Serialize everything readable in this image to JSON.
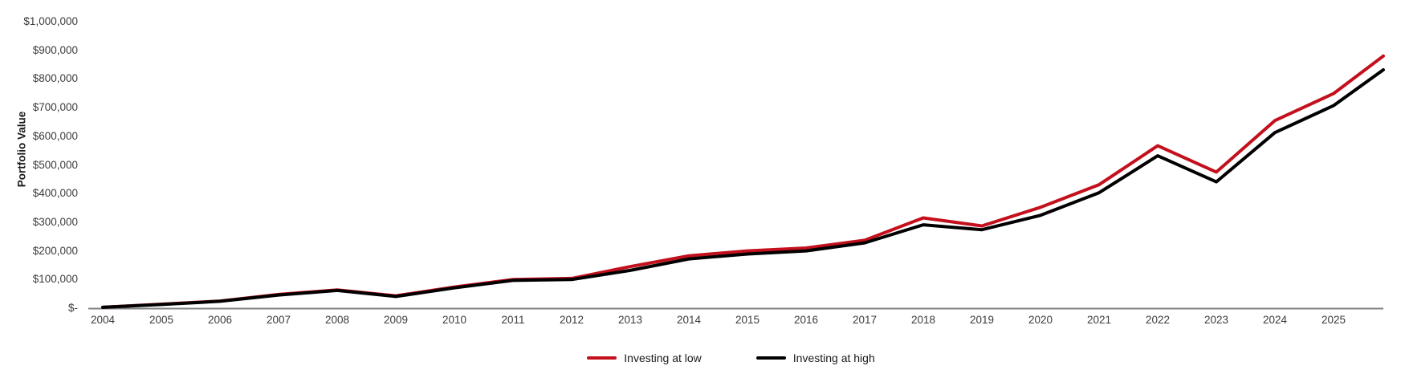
{
  "chart_data": {
    "type": "line",
    "title": "",
    "xlabel": "",
    "ylabel": "Portfolio Value",
    "ylim": [
      0,
      1000000
    ],
    "xlim": [
      2004,
      2025.85
    ],
    "grid": false,
    "legend_position": "bottom-center",
    "axis_line_color": "#808080",
    "tick_label_color": "#3b3b3b",
    "y_ticks": [
      {
        "value": 0,
        "label": "$-"
      },
      {
        "value": 100000,
        "label": "$100,000"
      },
      {
        "value": 200000,
        "label": "$200,000"
      },
      {
        "value": 300000,
        "label": "$300,000"
      },
      {
        "value": 400000,
        "label": "$400,000"
      },
      {
        "value": 500000,
        "label": "$500,000"
      },
      {
        "value": 600000,
        "label": "$600,000"
      },
      {
        "value": 700000,
        "label": "$700,000"
      },
      {
        "value": 800000,
        "label": "$800,000"
      },
      {
        "value": 900000,
        "label": "$900,000"
      },
      {
        "value": 1000000,
        "label": "$1,000,000"
      }
    ],
    "x_tick_labels": [
      "2004",
      "2005",
      "2006",
      "2007",
      "2008",
      "2009",
      "2010",
      "2011",
      "2012",
      "2013",
      "2014",
      "2015",
      "2016",
      "2017",
      "2018",
      "2019",
      "2020",
      "2021",
      "2022",
      "2023",
      "2024",
      "2025"
    ],
    "x": [
      2004,
      2005,
      2006,
      2007,
      2008,
      2009,
      2010,
      2011,
      2012,
      2013,
      2014,
      2015,
      2016,
      2017,
      2018,
      2019,
      2020,
      2021,
      2022,
      2023,
      2024,
      2025,
      2025.85
    ],
    "series": [
      {
        "name": "Investing at low",
        "color": "#C3101C",
        "values": [
          3000,
          14000,
          25000,
          48000,
          64000,
          43000,
          74000,
          100000,
          104000,
          145000,
          183000,
          200000,
          210000,
          237000,
          315000,
          287000,
          352000,
          431000,
          567000,
          475000,
          655000,
          749000,
          880000
        ]
      },
      {
        "name": "Investing at high",
        "color": "#000000",
        "values": [
          3000,
          13000,
          24000,
          46000,
          62000,
          41000,
          71000,
          97000,
          100000,
          132000,
          172000,
          189000,
          200000,
          228000,
          291000,
          274000,
          324000,
          403000,
          532000,
          441000,
          613000,
          707000,
          832000
        ]
      }
    ]
  }
}
